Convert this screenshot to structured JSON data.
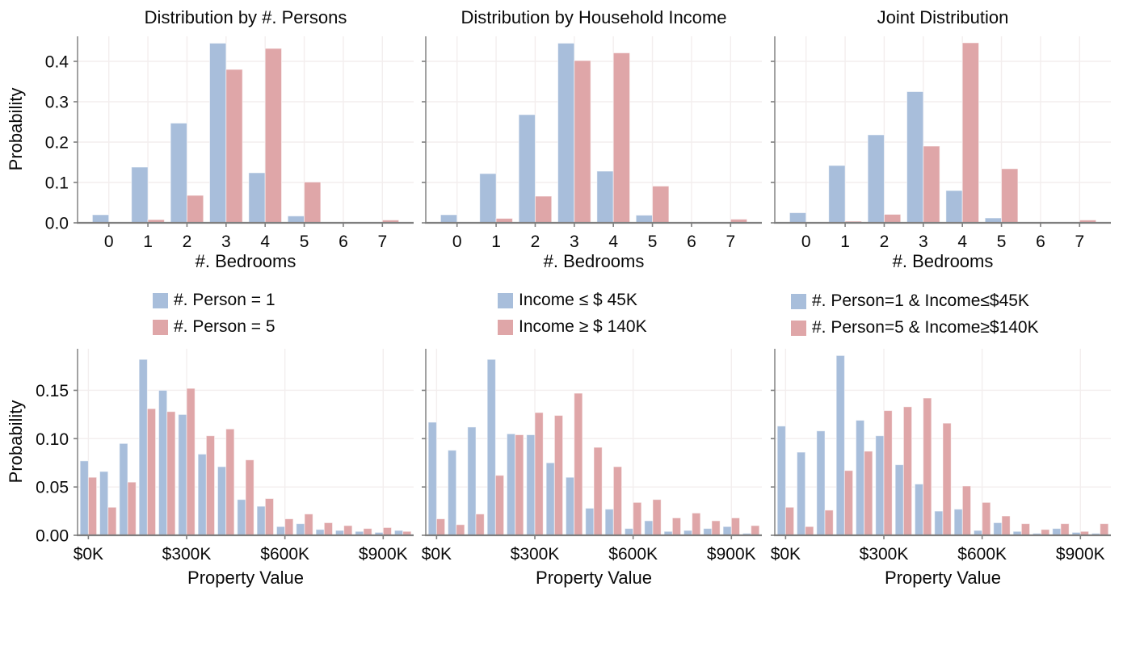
{
  "colors": {
    "series_a": "#a8bedb",
    "series_b": "#dfa6a8",
    "grid": "#f3eeee",
    "axis": "#7f7f7f",
    "spine": "#8a8a8a",
    "text": "#0a0a0a",
    "background": "#ffffff"
  },
  "legends": [
    {
      "items": [
        {
          "label": "#. Person = 1",
          "series": "series_a"
        },
        {
          "label": "#. Person = 5",
          "series": "series_b"
        }
      ]
    },
    {
      "items": [
        {
          "label": "Income ≤ $ 45K",
          "series": "series_a"
        },
        {
          "label": "Income ≥ $ 140K",
          "series": "series_b"
        }
      ]
    },
    {
      "items": [
        {
          "label": "#. Person=1 & Income≤$45K",
          "series": "series_a"
        },
        {
          "label": "#. Person=5 & Income≥$140K",
          "series": "series_b"
        }
      ]
    }
  ],
  "chart_data": [
    {
      "id": "bed_persons",
      "type": "bar",
      "title": "Distribution by #. Persons",
      "xlabel": "#. Bedrooms",
      "ylabel": "Probability",
      "categories": [
        "0",
        "1",
        "2",
        "3",
        "4",
        "5",
        "6",
        "7"
      ],
      "series": [
        {
          "name": "#. Person = 1",
          "color": "series_a",
          "values": [
            0.02,
            0.138,
            0.247,
            0.445,
            0.124,
            0.017,
            0.002,
            0.001
          ]
        },
        {
          "name": "#. Person = 5",
          "color": "series_b",
          "values": [
            0.001,
            0.008,
            0.068,
            0.38,
            0.432,
            0.101,
            0.001,
            0.007
          ]
        }
      ],
      "ylim": [
        0,
        0.462
      ],
      "yticks": [
        {
          "v": 0.0,
          "label": "0.0"
        },
        {
          "v": 0.1,
          "label": "0.1"
        },
        {
          "v": 0.2,
          "label": "0.2"
        },
        {
          "v": 0.3,
          "label": "0.3"
        },
        {
          "v": 0.4,
          "label": "0.4"
        }
      ],
      "show_y_tick_labels": true,
      "grid": true,
      "legend_position": "below"
    },
    {
      "id": "bed_income",
      "type": "bar",
      "title": "Distribution by Household Income",
      "xlabel": "#. Bedrooms",
      "ylabel": "Probability",
      "categories": [
        "0",
        "1",
        "2",
        "3",
        "4",
        "5",
        "6",
        "7"
      ],
      "series": [
        {
          "name": "Income ≤ $ 45K",
          "color": "series_a",
          "values": [
            0.02,
            0.122,
            0.268,
            0.445,
            0.128,
            0.019,
            0.001,
            0.001
          ]
        },
        {
          "name": "Income ≥ $ 140K",
          "color": "series_b",
          "values": [
            0.001,
            0.011,
            0.066,
            0.402,
            0.421,
            0.091,
            0.002,
            0.009
          ]
        }
      ],
      "ylim": [
        0,
        0.462
      ],
      "yticks": [
        {
          "v": 0.0,
          "label": "0.0"
        },
        {
          "v": 0.1,
          "label": "0.1"
        },
        {
          "v": 0.2,
          "label": "0.2"
        },
        {
          "v": 0.3,
          "label": "0.3"
        },
        {
          "v": 0.4,
          "label": "0.4"
        }
      ],
      "show_y_tick_labels": false,
      "grid": true,
      "legend_position": "below"
    },
    {
      "id": "bed_joint",
      "type": "bar",
      "title": "Joint Distribution",
      "xlabel": "#. Bedrooms",
      "ylabel": "Probability",
      "categories": [
        "0",
        "1",
        "2",
        "3",
        "4",
        "5",
        "6",
        "7"
      ],
      "series": [
        {
          "name": "#. Person=1 & Income≤$45K",
          "color": "series_a",
          "values": [
            0.025,
            0.142,
            0.218,
            0.325,
            0.08,
            0.012,
            0.001,
            0.001
          ]
        },
        {
          "name": "#. Person=5 & Income≥$140K",
          "color": "series_b",
          "values": [
            0.001,
            0.004,
            0.021,
            0.19,
            0.446,
            0.134,
            0.002,
            0.007
          ]
        }
      ],
      "ylim": [
        0,
        0.462
      ],
      "yticks": [
        {
          "v": 0.0,
          "label": "0.0"
        },
        {
          "v": 0.1,
          "label": "0.1"
        },
        {
          "v": 0.2,
          "label": "0.2"
        },
        {
          "v": 0.3,
          "label": "0.3"
        },
        {
          "v": 0.4,
          "label": "0.4"
        }
      ],
      "show_y_tick_labels": false,
      "grid": true,
      "legend_position": "below"
    },
    {
      "id": "val_persons",
      "type": "bar",
      "title": "",
      "xlabel": "Property Value",
      "ylabel": "Probability",
      "bin_width_k": 60,
      "bin_start_k": 0,
      "series": [
        {
          "name": "#. Person = 1",
          "color": "series_a",
          "values": [
            0.077,
            0.066,
            0.095,
            0.182,
            0.15,
            0.125,
            0.084,
            0.071,
            0.037,
            0.03,
            0.009,
            0.012,
            0.006,
            0.005,
            0.004,
            0.003,
            0.005
          ]
        },
        {
          "name": "#. Person = 5",
          "color": "series_b",
          "values": [
            0.06,
            0.029,
            0.055,
            0.131,
            0.128,
            0.152,
            0.103,
            0.11,
            0.078,
            0.038,
            0.017,
            0.022,
            0.013,
            0.01,
            0.007,
            0.008,
            0.004
          ]
        }
      ],
      "ylim": [
        0,
        0.193
      ],
      "yticks": [
        {
          "v": 0.0,
          "label": "0.00"
        },
        {
          "v": 0.05,
          "label": "0.05"
        },
        {
          "v": 0.1,
          "label": "0.10"
        },
        {
          "v": 0.15,
          "label": "0.15"
        }
      ],
      "xticks": [
        {
          "bin": 0,
          "label": "$0K"
        },
        {
          "bin": 5,
          "label": "$300K"
        },
        {
          "bin": 10,
          "label": "$600K"
        },
        {
          "bin": 15,
          "label": "$900K"
        }
      ],
      "show_y_tick_labels": true,
      "grid": true
    },
    {
      "id": "val_income",
      "type": "bar",
      "title": "",
      "xlabel": "Property Value",
      "ylabel": "Probability",
      "bin_width_k": 60,
      "bin_start_k": 0,
      "series": [
        {
          "name": "Income ≤ $ 45K",
          "color": "series_a",
          "values": [
            0.117,
            0.088,
            0.112,
            0.182,
            0.105,
            0.104,
            0.075,
            0.06,
            0.028,
            0.027,
            0.007,
            0.015,
            0.004,
            0.005,
            0.007,
            0.009,
            0.002
          ]
        },
        {
          "name": "Income ≥ $ 140K",
          "color": "series_b",
          "values": [
            0.017,
            0.011,
            0.022,
            0.062,
            0.104,
            0.127,
            0.124,
            0.147,
            0.091,
            0.071,
            0.034,
            0.037,
            0.018,
            0.023,
            0.015,
            0.018,
            0.01
          ]
        }
      ],
      "ylim": [
        0,
        0.193
      ],
      "yticks": [
        {
          "v": 0.0,
          "label": "0.00"
        },
        {
          "v": 0.05,
          "label": "0.05"
        },
        {
          "v": 0.1,
          "label": "0.10"
        },
        {
          "v": 0.15,
          "label": "0.15"
        }
      ],
      "xticks": [
        {
          "bin": 0,
          "label": "$0K"
        },
        {
          "bin": 5,
          "label": "$300K"
        },
        {
          "bin": 10,
          "label": "$600K"
        },
        {
          "bin": 15,
          "label": "$900K"
        }
      ],
      "show_y_tick_labels": false,
      "grid": true
    },
    {
      "id": "val_joint",
      "type": "bar",
      "title": "",
      "xlabel": "Property Value",
      "ylabel": "Probability",
      "bin_width_k": 60,
      "bin_start_k": 0,
      "series": [
        {
          "name": "#. Person=1 & Income≤$45K",
          "color": "series_a",
          "values": [
            0.113,
            0.086,
            0.108,
            0.186,
            0.119,
            0.103,
            0.073,
            0.053,
            0.025,
            0.027,
            0.005,
            0.013,
            0.004,
            0.002,
            0.007,
            0.003,
            0.002
          ]
        },
        {
          "name": "#. Person=5 & Income≥$140K",
          "color": "series_b",
          "values": [
            0.029,
            0.009,
            0.026,
            0.067,
            0.087,
            0.129,
            0.133,
            0.142,
            0.116,
            0.051,
            0.034,
            0.02,
            0.012,
            0.006,
            0.012,
            0.004,
            0.012
          ]
        }
      ],
      "ylim": [
        0,
        0.193
      ],
      "yticks": [
        {
          "v": 0.0,
          "label": "0.00"
        },
        {
          "v": 0.05,
          "label": "0.05"
        },
        {
          "v": 0.1,
          "label": "0.10"
        },
        {
          "v": 0.15,
          "label": "0.15"
        }
      ],
      "xticks": [
        {
          "bin": 0,
          "label": "$0K"
        },
        {
          "bin": 5,
          "label": "$300K"
        },
        {
          "bin": 10,
          "label": "$600K"
        },
        {
          "bin": 15,
          "label": "$900K"
        }
      ],
      "show_y_tick_labels": false,
      "grid": true
    }
  ]
}
